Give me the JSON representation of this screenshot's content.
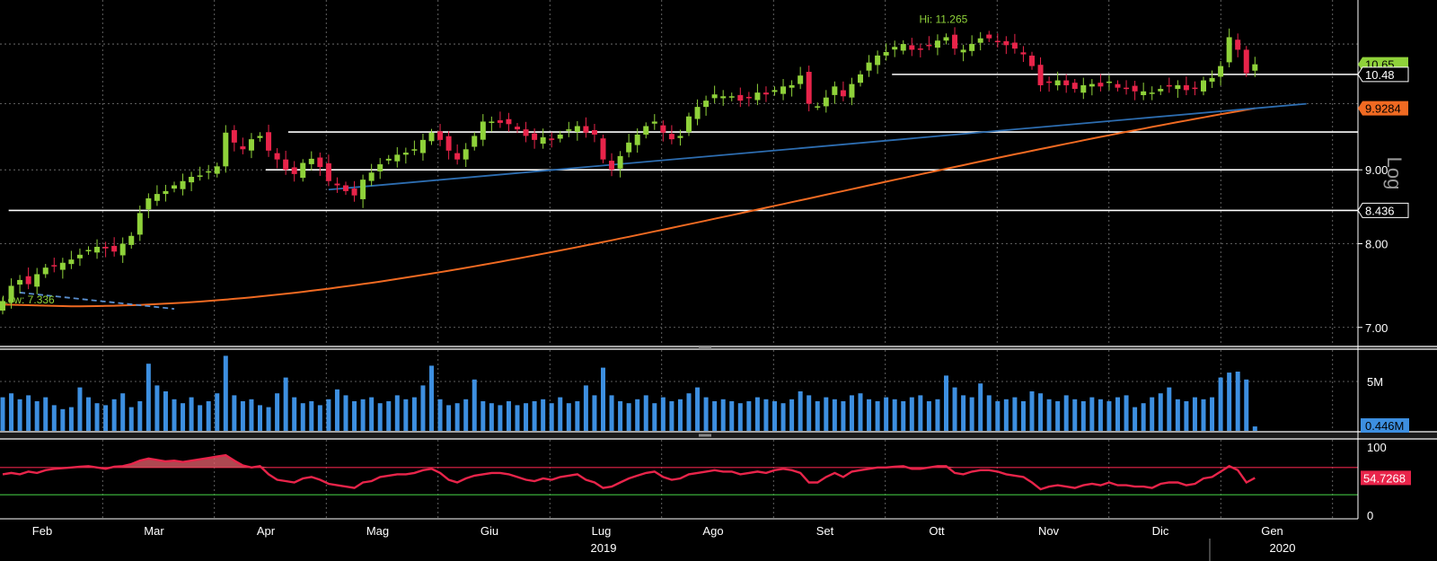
{
  "colors": {
    "background": "#000000",
    "grid": "#7a7a7a",
    "up_candle": "#8fd23a",
    "down_candle": "#e8244a",
    "ma_line": "#f06a22",
    "trend_line": "#2d6db0",
    "volume_bar": "#3d8fe0",
    "rsi_line": "#e8244a",
    "rsi_fill": "#e8606c",
    "rsi_upper": "#e8244a",
    "rsi_lower": "#40c040",
    "hi_lo_label": "#8fd23a",
    "axis_text": "#ffffff"
  },
  "x_axis": {
    "months": [
      "Feb",
      "Mar",
      "Apr",
      "Mag",
      "Giu",
      "Lug",
      "Ago",
      "Set",
      "Ott",
      "Nov",
      "Dic",
      "Gen"
    ],
    "years": [
      "2019",
      "2020"
    ]
  },
  "chart_data": [
    {
      "type": "candlestick",
      "panel": "price",
      "scale": "log",
      "scale_label": "Log",
      "y_ticks": [
        "7.00",
        "8.00",
        "9.00"
      ],
      "ylim": [
        6.8,
        11.8
      ],
      "hi_label": "Hi: 11.265",
      "low_label": "Low: 7.336",
      "price_tags": [
        {
          "text": "10.65",
          "value": 10.65,
          "color": "#8fd23a",
          "text_color": "#000000"
        },
        {
          "text": "10.48",
          "value": 10.48,
          "color": "#000000",
          "text_color": "#ffffff"
        },
        {
          "text": "9.9284",
          "value": 9.9284,
          "color": "#f06a22",
          "text_color": "#000000"
        },
        {
          "text": "8.436",
          "value": 8.436,
          "color": "#000000",
          "text_color": "#ffffff"
        }
      ],
      "horizontal_levels": [
        {
          "value": 10.48,
          "from_month": 7.6
        },
        {
          "value": 9.56,
          "from_month": 2.2
        },
        {
          "value": 9.0,
          "from_month": 2.0
        },
        {
          "value": 8.436,
          "from_month": -0.3
        }
      ],
      "closes": [
        7.3,
        7.48,
        7.55,
        7.5,
        7.62,
        7.7,
        7.72,
        7.76,
        7.8,
        7.86,
        7.92,
        7.96,
        7.94,
        7.9,
        8.0,
        8.1,
        8.4,
        8.6,
        8.66,
        8.7,
        8.78,
        8.84,
        8.9,
        8.92,
        8.98,
        9.05,
        9.55,
        9.4,
        9.3,
        9.45,
        9.5,
        9.28,
        9.15,
        9.0,
        8.94,
        9.1,
        9.16,
        9.04,
        8.84,
        8.78,
        8.7,
        8.64,
        8.86,
        8.96,
        9.08,
        9.16,
        9.22,
        9.25,
        9.3,
        9.44,
        9.55,
        9.44,
        9.28,
        9.15,
        9.3,
        9.5,
        9.72,
        9.72,
        9.7,
        9.68,
        9.6,
        9.5,
        9.44,
        9.48,
        9.44,
        9.52,
        9.6,
        9.65,
        9.55,
        9.52,
        9.15,
        9.0,
        9.2,
        9.4,
        9.52,
        9.65,
        9.72,
        9.55,
        9.45,
        9.5,
        9.8,
        9.95,
        10.05,
        10.15,
        10.12,
        10.12,
        10.05,
        10.1,
        10.18,
        10.15,
        10.22,
        10.28,
        10.3,
        10.46,
        10.0,
        9.96,
        10.1,
        10.28,
        10.12,
        10.32,
        10.48,
        10.68,
        10.8,
        10.86,
        10.95,
        11.0,
        10.9,
        10.92,
        10.98,
        11.06,
        11.12,
        10.92,
        10.9,
        11.0,
        11.1,
        11.1,
        11.05,
        10.98,
        10.92,
        10.82,
        10.62,
        10.3,
        10.34,
        10.38,
        10.3,
        10.24,
        10.3,
        10.32,
        10.28,
        10.36,
        10.26,
        10.25,
        10.2,
        10.2,
        10.18,
        10.24,
        10.28,
        10.3,
        10.22,
        10.26,
        10.38,
        10.42,
        10.62,
        11.12,
        10.9,
        10.5,
        10.65
      ],
      "moving_average_200": {
        "start": 7.26,
        "dip_index": 8,
        "dip": 7.24,
        "end": 9.9284
      },
      "trend_lines": [
        {
          "from_index": 38,
          "from_value": 8.72,
          "to_index": 152,
          "to_value": 10.0,
          "style": "solid"
        },
        {
          "from_index": 2,
          "from_value": 7.4,
          "to_index": 20,
          "to_value": 7.21,
          "style": "dashed"
        }
      ]
    },
    {
      "type": "bar",
      "panel": "volume",
      "y_ticks": [
        "5M"
      ],
      "ylim": [
        0,
        8
      ],
      "last_label": "0.446M",
      "values": [
        3.4,
        3.8,
        3.2,
        3.6,
        3.0,
        3.4,
        2.6,
        2.2,
        2.4,
        4.4,
        3.4,
        2.8,
        2.6,
        3.2,
        3.8,
        2.4,
        3.0,
        6.8,
        4.6,
        4.0,
        3.2,
        2.8,
        3.4,
        2.6,
        3.0,
        3.8,
        7.6,
        3.6,
        3.0,
        3.2,
        2.6,
        2.4,
        3.8,
        5.4,
        3.4,
        2.8,
        3.0,
        2.6,
        3.2,
        4.2,
        3.6,
        3.0,
        3.2,
        3.4,
        2.8,
        3.0,
        3.6,
        3.2,
        3.4,
        4.6,
        6.6,
        3.2,
        2.6,
        2.8,
        3.2,
        5.2,
        3.0,
        2.8,
        2.6,
        3.0,
        2.6,
        2.8,
        3.0,
        3.2,
        2.8,
        3.4,
        2.8,
        3.0,
        4.6,
        3.6,
        6.4,
        3.6,
        3.0,
        2.8,
        3.2,
        3.6,
        2.8,
        3.4,
        3.0,
        3.2,
        3.8,
        4.4,
        3.4,
        3.0,
        3.2,
        3.0,
        2.8,
        3.0,
        3.4,
        3.2,
        3.0,
        2.8,
        3.2,
        4.0,
        3.6,
        3.0,
        3.4,
        3.2,
        3.0,
        3.6,
        3.8,
        3.2,
        3.0,
        3.4,
        3.2,
        3.0,
        3.4,
        3.6,
        3.0,
        3.2,
        5.6,
        4.4,
        3.6,
        3.4,
        4.8,
        3.6,
        3.0,
        3.2,
        3.4,
        3.0,
        4.0,
        3.8,
        3.2,
        3.0,
        3.6,
        3.2,
        3.0,
        3.4,
        3.2,
        3.0,
        3.4,
        3.6,
        2.4,
        2.8,
        3.4,
        3.8,
        4.4,
        3.2,
        3.0,
        3.4,
        3.2,
        3.4,
        5.4,
        5.9,
        6.0,
        5.2,
        0.446
      ]
    },
    {
      "type": "line",
      "panel": "rsi",
      "y_ticks": [
        "100",
        "0"
      ],
      "ylim": [
        0,
        100
      ],
      "upper_band": 70,
      "lower_band": 30,
      "last_label": "54.7268",
      "values": [
        60,
        62,
        60,
        64,
        62,
        66,
        68,
        69,
        70,
        71,
        72,
        70,
        68,
        71,
        72,
        75,
        80,
        83,
        81,
        79,
        80,
        78,
        80,
        82,
        84,
        86,
        88,
        80,
        73,
        70,
        72,
        60,
        52,
        50,
        48,
        54,
        56,
        52,
        46,
        44,
        42,
        40,
        48,
        50,
        56,
        58,
        60,
        60,
        62,
        66,
        68,
        62,
        52,
        48,
        54,
        58,
        60,
        62,
        62,
        60,
        56,
        52,
        50,
        54,
        52,
        56,
        58,
        60,
        52,
        48,
        40,
        42,
        48,
        54,
        58,
        62,
        64,
        56,
        52,
        54,
        60,
        62,
        64,
        66,
        64,
        64,
        60,
        62,
        64,
        62,
        66,
        68,
        66,
        62,
        48,
        48,
        56,
        62,
        56,
        64,
        66,
        68,
        70,
        70,
        71,
        72,
        68,
        68,
        70,
        72,
        72,
        62,
        60,
        64,
        66,
        66,
        64,
        60,
        58,
        56,
        48,
        38,
        42,
        44,
        42,
        40,
        44,
        46,
        44,
        48,
        44,
        44,
        42,
        42,
        40,
        46,
        48,
        48,
        44,
        46,
        54,
        56,
        64,
        72,
        66,
        48,
        54.7268
      ]
    }
  ]
}
